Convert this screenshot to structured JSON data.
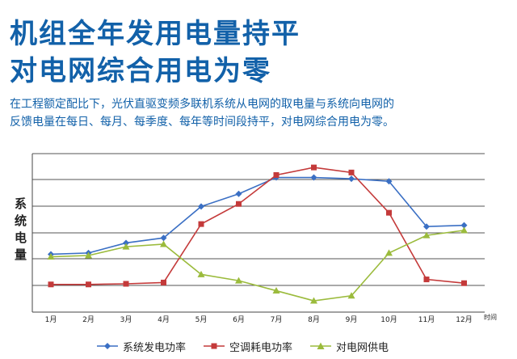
{
  "heading": {
    "line1": "机组全年发用电量持平",
    "line2": "对电网综合用电为零"
  },
  "description": {
    "line1": "在工程额定配比下，光伏直驱变频多联机系统从电网的取电量与系统向电网的",
    "line2": "反馈电量在每日、每月、每季度、每年等时间段持平，对电网综合用电为零。"
  },
  "chart_data": {
    "type": "line",
    "categories": [
      "1月",
      "2月",
      "3月",
      "4月",
      "5月",
      "6月",
      "7月",
      "8月",
      "9月",
      "10月",
      "11月",
      "12月"
    ],
    "xlabel": "时间",
    "ylabel_chars": [
      "系",
      "统",
      "电",
      "量"
    ],
    "ylim": [
      0,
      100
    ],
    "grid": true,
    "legend_position": "bottom",
    "series": [
      {
        "name": "系统发电功率",
        "color": "#3a6fc4",
        "marker": "diamond",
        "values": [
          32,
          33,
          41,
          45,
          70,
          80,
          93,
          93,
          92,
          90,
          54,
          55
        ]
      },
      {
        "name": "空调耗电功率",
        "color": "#c43a3a",
        "marker": "square",
        "values": [
          8,
          8,
          8.5,
          9.5,
          56,
          72,
          95,
          101,
          97,
          65,
          12,
          9
        ]
      },
      {
        "name": "对电网供电",
        "color": "#9bbb3c",
        "marker": "triangle",
        "values": [
          30,
          31,
          38,
          40,
          16,
          11,
          3,
          -5,
          -1,
          33,
          47,
          51
        ]
      }
    ]
  }
}
